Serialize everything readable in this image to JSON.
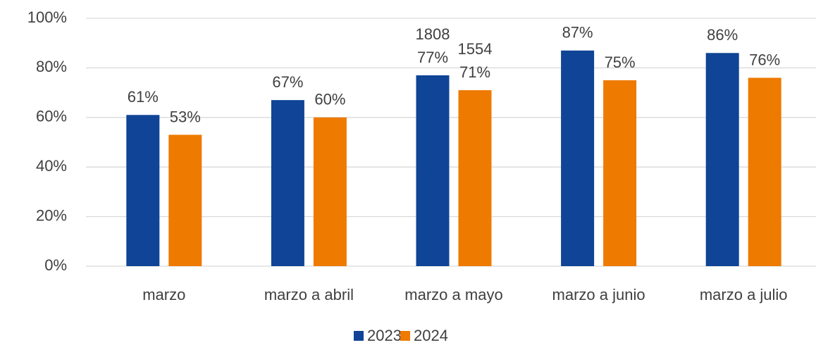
{
  "chart_data": {
    "type": "bar",
    "categories": [
      "marzo",
      "marzo a abril",
      "marzo a mayo",
      "marzo a junio",
      "marzo a julio"
    ],
    "series": [
      {
        "name": "2023",
        "color": "#0f4496",
        "values": [
          61,
          67,
          77,
          87,
          86
        ],
        "value_labels": [
          "61%",
          "67%",
          "77%",
          "87%",
          "86%"
        ]
      },
      {
        "name": "2024",
        "color": "#ee7a00",
        "values": [
          53,
          60,
          71,
          75,
          76
        ],
        "value_labels": [
          "53%",
          "60%",
          "71%",
          "75%",
          "76%"
        ]
      }
    ],
    "annotations": [
      {
        "text": "1808",
        "category": "marzo a mayo",
        "series": "2023"
      },
      {
        "text": "1554",
        "category": "marzo a mayo",
        "series": "2024"
      }
    ],
    "ylim": [
      0,
      100
    ],
    "yticks": [
      {
        "value": 0,
        "label": "0%"
      },
      {
        "value": 20,
        "label": "20%"
      },
      {
        "value": 40,
        "label": "40%"
      },
      {
        "value": 60,
        "label": "60%"
      },
      {
        "value": 80,
        "label": "80%"
      },
      {
        "value": 100,
        "label": "100%"
      }
    ],
    "grid": true,
    "legend": "bottom"
  }
}
